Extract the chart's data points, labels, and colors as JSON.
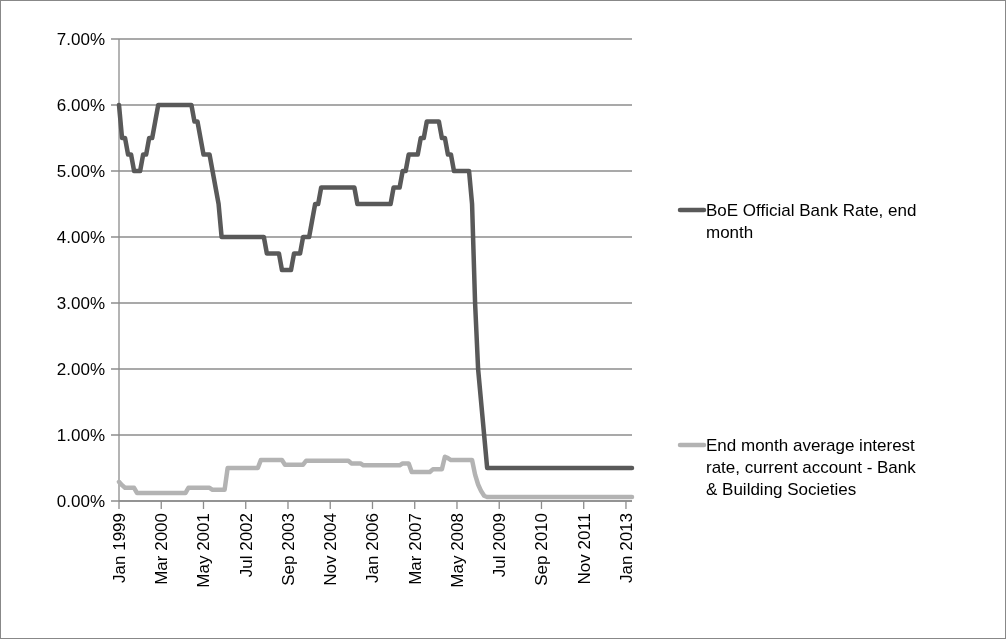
{
  "chart_data": {
    "type": "line",
    "categories": [
      "Jan 1999",
      null,
      null,
      null,
      null,
      null,
      null,
      null,
      null,
      null,
      null,
      null,
      null,
      null,
      "Mar 2000",
      null,
      null,
      null,
      null,
      null,
      null,
      null,
      null,
      null,
      null,
      null,
      null,
      null,
      "May 2001",
      null,
      null,
      null,
      null,
      null,
      null,
      null,
      null,
      null,
      null,
      null,
      null,
      null,
      "Jul 2002",
      null,
      null,
      null,
      null,
      null,
      null,
      null,
      null,
      null,
      null,
      null,
      null,
      null,
      "Sep 2003",
      null,
      null,
      null,
      null,
      null,
      null,
      null,
      null,
      null,
      null,
      null,
      null,
      null,
      "Nov 2004",
      null,
      null,
      null,
      null,
      null,
      null,
      null,
      null,
      null,
      null,
      null,
      null,
      null,
      "Jan 2006",
      null,
      null,
      null,
      null,
      null,
      null,
      null,
      null,
      null,
      null,
      null,
      null,
      null,
      "Mar 2007",
      null,
      null,
      null,
      null,
      null,
      null,
      null,
      null,
      null,
      null,
      null,
      null,
      null,
      "May 2008",
      null,
      null,
      null,
      null,
      null,
      null,
      null,
      null,
      null,
      null,
      null,
      null,
      null,
      "Jul 2009",
      null,
      null,
      null,
      null,
      null,
      null,
      null,
      null,
      null,
      null,
      null,
      null,
      null,
      "Sep 2010",
      null,
      null,
      null,
      null,
      null,
      null,
      null,
      null,
      null,
      null,
      null,
      null,
      null,
      "Nov 2011",
      null,
      null,
      null,
      null,
      null,
      null,
      null,
      null,
      null,
      null,
      null,
      null,
      null,
      "Jan 2013",
      null,
      null
    ],
    "series": [
      {
        "name": "BoE Official Bank Rate, end month",
        "color": "#595959",
        "values": [
          6.0,
          5.5,
          5.5,
          5.25,
          5.25,
          5.0,
          5.0,
          5.0,
          5.25,
          5.25,
          5.5,
          5.5,
          5.75,
          6.0,
          6.0,
          6.0,
          6.0,
          6.0,
          6.0,
          6.0,
          6.0,
          6.0,
          6.0,
          6.0,
          6.0,
          5.75,
          5.75,
          5.5,
          5.25,
          5.25,
          5.25,
          5.0,
          4.75,
          4.5,
          4.0,
          4.0,
          4.0,
          4.0,
          4.0,
          4.0,
          4.0,
          4.0,
          4.0,
          4.0,
          4.0,
          4.0,
          4.0,
          4.0,
          4.0,
          3.75,
          3.75,
          3.75,
          3.75,
          3.75,
          3.5,
          3.5,
          3.5,
          3.5,
          3.75,
          3.75,
          3.75,
          4.0,
          4.0,
          4.0,
          4.25,
          4.5,
          4.5,
          4.75,
          4.75,
          4.75,
          4.75,
          4.75,
          4.75,
          4.75,
          4.75,
          4.75,
          4.75,
          4.75,
          4.75,
          4.5,
          4.5,
          4.5,
          4.5,
          4.5,
          4.5,
          4.5,
          4.5,
          4.5,
          4.5,
          4.5,
          4.5,
          4.75,
          4.75,
          4.75,
          5.0,
          5.0,
          5.25,
          5.25,
          5.25,
          5.25,
          5.5,
          5.5,
          5.75,
          5.75,
          5.75,
          5.75,
          5.75,
          5.5,
          5.5,
          5.25,
          5.25,
          5.0,
          5.0,
          5.0,
          5.0,
          5.0,
          5.0,
          4.5,
          3.0,
          2.0,
          1.5,
          1.0,
          0.5,
          0.5,
          0.5,
          0.5,
          0.5,
          0.5,
          0.5,
          0.5,
          0.5,
          0.5,
          0.5,
          0.5,
          0.5,
          0.5,
          0.5,
          0.5,
          0.5,
          0.5,
          0.5,
          0.5,
          0.5,
          0.5,
          0.5,
          0.5,
          0.5,
          0.5,
          0.5,
          0.5,
          0.5,
          0.5,
          0.5,
          0.5,
          0.5,
          0.5,
          0.5,
          0.5,
          0.5,
          0.5,
          0.5,
          0.5,
          0.5,
          0.5,
          0.5,
          0.5,
          0.5,
          0.5,
          0.5,
          0.5,
          0.5
        ]
      },
      {
        "name": "End month average interest rate, current account - Bank & Building Societies",
        "color": "#b3b3b3",
        "values": [
          0.29,
          0.24,
          0.2,
          0.2,
          0.2,
          0.2,
          0.12,
          0.12,
          0.12,
          0.12,
          0.12,
          0.12,
          0.12,
          0.12,
          0.12,
          0.12,
          0.12,
          0.12,
          0.12,
          0.12,
          0.12,
          0.12,
          0.12,
          0.2,
          0.2,
          0.2,
          0.2,
          0.2,
          0.2,
          0.2,
          0.2,
          0.17,
          0.17,
          0.17,
          0.17,
          0.17,
          0.5,
          0.5,
          0.5,
          0.5,
          0.5,
          0.5,
          0.5,
          0.5,
          0.5,
          0.5,
          0.5,
          0.62,
          0.62,
          0.62,
          0.62,
          0.62,
          0.62,
          0.62,
          0.62,
          0.55,
          0.55,
          0.55,
          0.55,
          0.55,
          0.55,
          0.55,
          0.61,
          0.61,
          0.61,
          0.61,
          0.61,
          0.61,
          0.61,
          0.61,
          0.61,
          0.61,
          0.61,
          0.61,
          0.61,
          0.61,
          0.61,
          0.57,
          0.57,
          0.57,
          0.57,
          0.54,
          0.54,
          0.54,
          0.54,
          0.54,
          0.54,
          0.54,
          0.54,
          0.54,
          0.54,
          0.54,
          0.54,
          0.54,
          0.57,
          0.57,
          0.57,
          0.44,
          0.44,
          0.44,
          0.44,
          0.44,
          0.44,
          0.44,
          0.48,
          0.48,
          0.48,
          0.48,
          0.67,
          0.65,
          0.62,
          0.62,
          0.62,
          0.62,
          0.62,
          0.62,
          0.62,
          0.62,
          0.4,
          0.25,
          0.15,
          0.08,
          0.06,
          0.06,
          0.06,
          0.06,
          0.06,
          0.06,
          0.06,
          0.06,
          0.06,
          0.06,
          0.06,
          0.06,
          0.06,
          0.06,
          0.06,
          0.06,
          0.06,
          0.06,
          0.06,
          0.06,
          0.06,
          0.06,
          0.06,
          0.06,
          0.06,
          0.06,
          0.06,
          0.06,
          0.06,
          0.06,
          0.06,
          0.06,
          0.06,
          0.06,
          0.06,
          0.06,
          0.06,
          0.06,
          0.06,
          0.06,
          0.06,
          0.06,
          0.06,
          0.06,
          0.06,
          0.06,
          0.06,
          0.06,
          0.06
        ]
      }
    ],
    "ylim": [
      0,
      7
    ],
    "yticks": [
      {
        "value": 0,
        "label": "0.00%"
      },
      {
        "value": 1,
        "label": "1.00%"
      },
      {
        "value": 2,
        "label": "2.00%"
      },
      {
        "value": 3,
        "label": "3.00%"
      },
      {
        "value": 4,
        "label": "4.00%"
      },
      {
        "value": 5,
        "label": "5.00%"
      },
      {
        "value": 6,
        "label": "6.00%"
      },
      {
        "value": 7,
        "label": "7.00%"
      }
    ],
    "grid": "y",
    "legend": "right",
    "marker": "none",
    "line_style": "solid"
  }
}
